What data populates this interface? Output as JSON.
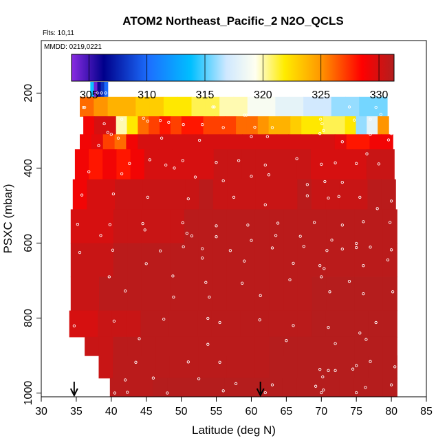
{
  "chart_data": {
    "type": "heatmap",
    "title": "ATOM2 Northeast_Pacific_2 N2O_QCLS",
    "flights_note": "Flts: 10,11",
    "date_note": "MMDD: 0219,0221",
    "xlabel": "Latitude (deg N)",
    "ylabel": "PSXC (mbar)",
    "xlim": [
      30,
      85
    ],
    "ylim": [
      1010,
      60
    ],
    "y_inverted": true,
    "x_ticks": [
      30,
      35,
      40,
      45,
      50,
      55,
      60,
      65,
      70,
      75,
      80,
      85
    ],
    "y_ticks": [
      200,
      400,
      600,
      800,
      1000
    ],
    "colorbar": {
      "range": [
        303.5,
        331.3
      ],
      "ticks": [
        305,
        310,
        315,
        320,
        325,
        330
      ],
      "placement": "top-inside"
    },
    "colors": {
      "purple": "#8a2be2",
      "navy": "#00008b",
      "blue": "#1c6fff",
      "cyan": "#00bfff",
      "light_blue": "#cfe8ff",
      "ivory": "#fffff0",
      "yellow": "#ffec00",
      "orange": "#ff9900",
      "red": "#ff0000",
      "dark_red": "#b21e1e"
    },
    "flight_markers_latitude": [
      34.7,
      61.3
    ],
    "bands": [
      {
        "p_top": 170,
        "p_bot": 210,
        "lat_start": 37.0,
        "lat_end": 39.5,
        "values": [
          314,
          304,
          306,
          308,
          310
        ]
      },
      {
        "p_top": 210,
        "p_bot": 262,
        "lat_start": 35.5,
        "lat_end": 79.4,
        "values": [
          326,
          325,
          324,
          324,
          323,
          323,
          322,
          322,
          321,
          321,
          320,
          320,
          319,
          319,
          318,
          318,
          317,
          317,
          316,
          316,
          315.5,
          315.5
        ]
      },
      {
        "p_top": 262,
        "p_bot": 310,
        "lat_start": 36.0,
        "lat_end": 79.6,
        "values": [
          329,
          330,
          330,
          320,
          322,
          326,
          327,
          328,
          327,
          328,
          328,
          327,
          327,
          327,
          326,
          326,
          325,
          324,
          324,
          323,
          322,
          322,
          321,
          321,
          322,
          316,
          318,
          325
        ]
      },
      {
        "p_top": 310,
        "p_bot": 350,
        "lat_start": 35.5,
        "lat_end": 80.2,
        "values": [
          329,
          329.5,
          327,
          326,
          329,
          330,
          330,
          330,
          330,
          330,
          330,
          330,
          330,
          330,
          330,
          330,
          330,
          330,
          330,
          330,
          330,
          330,
          329.5,
          328,
          328,
          329,
          329
        ]
      },
      {
        "p_top": 350,
        "p_bot": 430,
        "lat_start": 34.8,
        "lat_end": 80.4,
        "values": [
          329,
          328,
          329,
          328,
          329,
          330,
          330,
          330,
          330,
          330,
          330.5,
          330.5,
          330.5,
          330.5,
          330.5,
          330.5,
          330.5,
          330,
          330,
          330,
          330,
          330.5,
          330.5
        ]
      },
      {
        "p_top": 430,
        "p_bot": 510,
        "lat_start": 34.5,
        "lat_end": 80.6,
        "values": [
          329,
          330,
          330,
          330.5,
          330.5,
          330.5,
          330.5,
          330.5,
          330.5,
          331,
          330.5,
          330.5,
          330.5,
          330.5,
          330.5,
          330.5,
          331,
          330.5,
          330.5,
          330.5,
          330.5,
          331,
          331
        ]
      },
      {
        "p_top": 510,
        "p_bot": 600,
        "lat_start": 34.2,
        "lat_end": 80.8,
        "values": [
          330,
          330,
          330,
          330.5,
          330.5,
          330.5,
          330.5,
          330.5,
          331,
          331,
          331,
          331,
          331,
          331,
          331,
          331,
          331,
          331,
          331,
          331,
          331,
          331,
          331
        ]
      },
      {
        "p_top": 600,
        "p_bot": 690,
        "lat_start": 34.2,
        "lat_end": 80.8,
        "values": [
          330.5,
          330.5,
          330.5,
          331,
          331,
          331,
          331,
          331,
          331,
          331,
          331,
          331,
          331,
          331,
          331,
          331,
          331,
          331,
          331,
          331,
          331,
          331,
          331
        ]
      },
      {
        "p_top": 690,
        "p_bot": 780,
        "lat_start": 34.2,
        "lat_end": 80.8,
        "values": [
          330.5,
          330.5,
          331,
          331,
          331,
          331,
          331,
          331,
          331,
          331,
          331,
          331,
          331,
          331,
          331,
          331,
          331,
          331.2,
          331.2,
          331.2,
          331.2,
          331.2,
          331.2
        ]
      },
      {
        "p_top": 780,
        "p_bot": 850,
        "lat_start": 34.0,
        "lat_end": 80.8,
        "values": [
          330,
          330,
          330.5,
          330.5,
          330.5,
          331,
          331,
          331,
          331,
          331,
          331,
          331,
          331,
          331,
          331,
          331,
          331,
          331.2,
          331.2,
          331.2,
          331.2,
          331.2,
          331.2
        ]
      },
      {
        "p_top": 850,
        "p_bot": 900,
        "lat_start": 36.2,
        "lat_end": 80.8,
        "values": [
          330.5,
          330.5,
          331,
          331,
          331,
          331,
          331,
          331,
          331,
          331,
          331,
          331,
          331,
          331.2,
          331.2,
          331.2,
          331.2,
          331.2,
          331.2,
          331.2,
          331.2,
          331.2
        ]
      },
      {
        "p_top": 900,
        "p_bot": 960,
        "lat_start": 38.2,
        "lat_end": 80.8,
        "values": [
          330.5,
          331,
          331,
          331,
          331,
          331,
          331,
          331,
          331,
          331,
          331,
          331,
          331.2,
          331.2,
          331.2,
          331.2,
          331.2,
          331.2,
          331.2,
          331.2,
          331.2
        ]
      },
      {
        "p_top": 960,
        "p_bot": 1010,
        "lat_start": 39.8,
        "lat_end": 80.8,
        "values": [
          331,
          331,
          331,
          331.2,
          331.2,
          331.2,
          331.2,
          331.2,
          331.2,
          331.2,
          331.2,
          331.2,
          331.2,
          331.2,
          331.2,
          331.2,
          331.2,
          331.2,
          331.2,
          331.2
        ]
      }
    ],
    "sample_points": [
      [
        38.0,
        200
      ],
      [
        38.6,
        200
      ],
      [
        39.2,
        200
      ],
      [
        36.0,
        238
      ],
      [
        36.2,
        238
      ],
      [
        54.5,
        237
      ],
      [
        54.7,
        237
      ],
      [
        59.0,
        259
      ],
      [
        59.3,
        259
      ],
      [
        74.0,
        237
      ],
      [
        77.8,
        238
      ],
      [
        78.5,
        257
      ],
      [
        39.0,
        282
      ],
      [
        41.5,
        270
      ],
      [
        44.6,
        267
      ],
      [
        45.2,
        275
      ],
      [
        47.0,
        273
      ],
      [
        48.2,
        278
      ],
      [
        50.3,
        284
      ],
      [
        53.0,
        284
      ],
      [
        56.0,
        292
      ],
      [
        60.5,
        291
      ],
      [
        63.0,
        292
      ],
      [
        69.9,
        270
      ],
      [
        70.1,
        282
      ],
      [
        74.7,
        272
      ],
      [
        77.0,
        270
      ],
      [
        39.5,
        305
      ],
      [
        40.0,
        310
      ],
      [
        41.0,
        320
      ],
      [
        47.2,
        320
      ],
      [
        52.6,
        326
      ],
      [
        60.0,
        316
      ],
      [
        62.3,
        316
      ],
      [
        69.8,
        308
      ],
      [
        70.3,
        300
      ],
      [
        73.0,
        330
      ],
      [
        77.0,
        310
      ],
      [
        79.6,
        325
      ],
      [
        80.0,
        308
      ],
      [
        38.2,
        340
      ],
      [
        42.6,
        388
      ],
      [
        45.5,
        378
      ],
      [
        47.8,
        392
      ],
      [
        50.2,
        380
      ],
      [
        55.0,
        385
      ],
      [
        58.2,
        380
      ],
      [
        62.0,
        392
      ],
      [
        66.5,
        375
      ],
      [
        70.0,
        390
      ],
      [
        72.0,
        386
      ],
      [
        75.0,
        388
      ],
      [
        76.5,
        362
      ],
      [
        78.2,
        389
      ],
      [
        36.8,
        410
      ],
      [
        41.5,
        415
      ],
      [
        49.0,
        400
      ],
      [
        52.0,
        424
      ],
      [
        56.0,
        434
      ],
      [
        60.0,
        422
      ],
      [
        62.5,
        418
      ],
      [
        68.0,
        444
      ],
      [
        70.5,
        436
      ],
      [
        73.0,
        438
      ],
      [
        35.8,
        472
      ],
      [
        40.3,
        469
      ],
      [
        45.2,
        478
      ],
      [
        51.0,
        482
      ],
      [
        57.5,
        478
      ],
      [
        62.0,
        498
      ],
      [
        68.0,
        474
      ],
      [
        71.0,
        480
      ],
      [
        72.5,
        476
      ],
      [
        75.5,
        478
      ],
      [
        78.0,
        508
      ],
      [
        80.0,
        488
      ],
      [
        35.2,
        550
      ],
      [
        39.8,
        551
      ],
      [
        44.5,
        548
      ],
      [
        50.2,
        546
      ],
      [
        55.0,
        554
      ],
      [
        59.5,
        552
      ],
      [
        63.8,
        547
      ],
      [
        69.0,
        545
      ],
      [
        73.0,
        552
      ],
      [
        76.0,
        543
      ],
      [
        79.8,
        545
      ],
      [
        38.5,
        580
      ],
      [
        44.8,
        565
      ],
      [
        50.8,
        574
      ],
      [
        51.5,
        581
      ],
      [
        55.0,
        583
      ],
      [
        60.0,
        593
      ],
      [
        63.5,
        580
      ],
      [
        67.0,
        582
      ],
      [
        71.5,
        592
      ],
      [
        75.0,
        601
      ],
      [
        35.5,
        625
      ],
      [
        40.2,
        619
      ],
      [
        47.0,
        621
      ],
      [
        50.3,
        610
      ],
      [
        53.0,
        615
      ],
      [
        57.0,
        620
      ],
      [
        63.0,
        613
      ],
      [
        67.5,
        609
      ],
      [
        70.8,
        620
      ],
      [
        73.0,
        616
      ],
      [
        75.0,
        612
      ],
      [
        77.0,
        611
      ],
      [
        80.0,
        618
      ],
      [
        45.0,
        655
      ],
      [
        53.0,
        640
      ],
      [
        59.0,
        648
      ],
      [
        66.0,
        654
      ],
      [
        69.8,
        660
      ],
      [
        70.4,
        668
      ],
      [
        76.0,
        660
      ],
      [
        79.5,
        645
      ],
      [
        39.7,
        690
      ],
      [
        48.8,
        688
      ],
      [
        53.5,
        705
      ],
      [
        58.7,
        707
      ],
      [
        65.5,
        698
      ],
      [
        70.0,
        690
      ],
      [
        74.0,
        702
      ],
      [
        42.0,
        728
      ],
      [
        48.9,
        744
      ],
      [
        54.0,
        744
      ],
      [
        61.3,
        740
      ],
      [
        71.2,
        730
      ],
      [
        76.0,
        735
      ],
      [
        80.2,
        730
      ],
      [
        34.7,
        821
      ],
      [
        40.4,
        808
      ],
      [
        47.5,
        803
      ],
      [
        53.8,
        801
      ],
      [
        55.5,
        812
      ],
      [
        61.2,
        805
      ],
      [
        66.0,
        820
      ],
      [
        71.0,
        825
      ],
      [
        75.5,
        840
      ],
      [
        77.8,
        812
      ],
      [
        44.0,
        855
      ],
      [
        53.8,
        870
      ],
      [
        65.0,
        860
      ],
      [
        72.0,
        868
      ],
      [
        76.4,
        857
      ],
      [
        43.5,
        918
      ],
      [
        51.0,
        917
      ],
      [
        55.5,
        918
      ],
      [
        69.8,
        937
      ],
      [
        70.2,
        957
      ],
      [
        71.0,
        940
      ],
      [
        72.0,
        940
      ],
      [
        74.5,
        936
      ],
      [
        75.0,
        927
      ],
      [
        77.0,
        916
      ],
      [
        80.5,
        930
      ],
      [
        42.0,
        965
      ],
      [
        46.0,
        960
      ],
      [
        52.5,
        962
      ],
      [
        57.8,
        975
      ],
      [
        63.0,
        978
      ],
      [
        69.2,
        982
      ],
      [
        70.3,
        992
      ],
      [
        76.3,
        985
      ],
      [
        80.0,
        978
      ],
      [
        40.5,
        1000
      ],
      [
        42.3,
        998
      ],
      [
        48.0,
        1000
      ],
      [
        56.0,
        994
      ],
      [
        62.0,
        999
      ],
      [
        70.0,
        999
      ],
      [
        75.0,
        999
      ]
    ]
  }
}
